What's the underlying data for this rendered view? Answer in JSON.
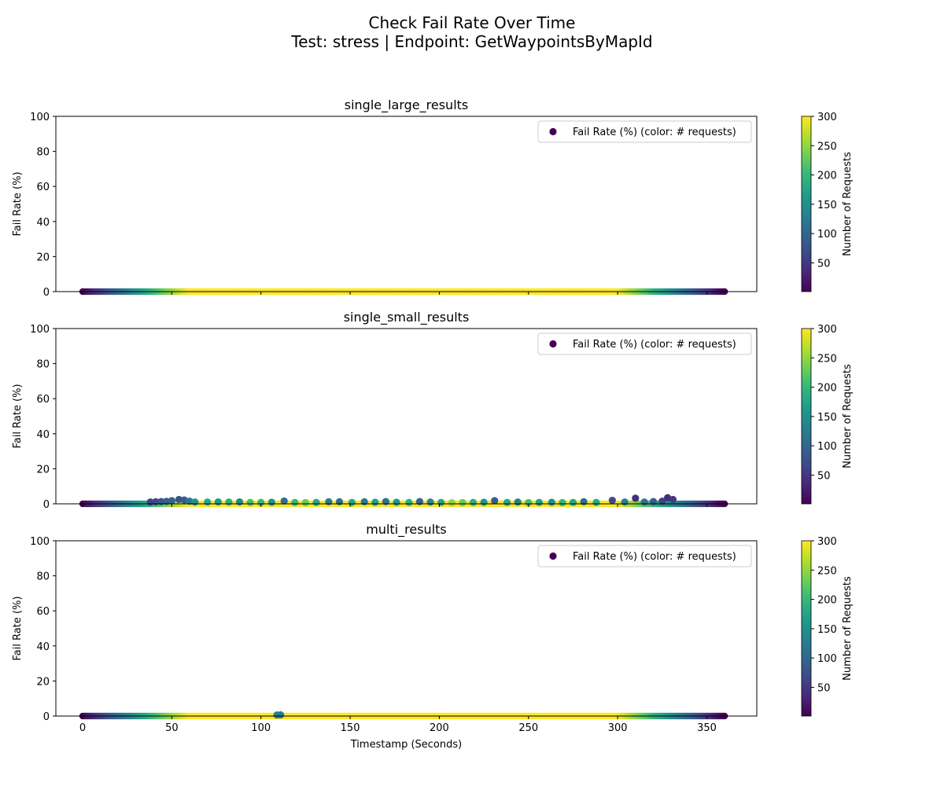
{
  "figure": {
    "title_line1": "Check Fail Rate Over Time",
    "title_line2": "Test: stress | Endpoint: GetWaypointsByMapId"
  },
  "colormap": {
    "name": "viridis",
    "stops": [
      "#440154",
      "#482878",
      "#3e4a89",
      "#31688e",
      "#26838f",
      "#1f9d8a",
      "#35b779",
      "#6ece58",
      "#b5de2b",
      "#fde725"
    ]
  },
  "chart_data": [
    {
      "type": "scatter",
      "title": "single_large_results",
      "ylabel": "Fail Rate (%)",
      "xlabel": "",
      "xlim": [
        -15,
        378
      ],
      "ylim": [
        0,
        100
      ],
      "xticks": [
        0,
        50,
        100,
        150,
        200,
        250,
        300,
        350
      ],
      "yticks": [
        0,
        20,
        40,
        60,
        80,
        100
      ],
      "legend": {
        "label": "Fail Rate (%) (color: # requests)",
        "position": "upper right"
      },
      "colorbar": {
        "label": "Number of Requests",
        "range": [
          1,
          300
        ],
        "ticks": [
          50,
          100,
          150,
          200,
          250,
          300
        ]
      },
      "ramp": {
        "up_start": 0,
        "up_end": 60,
        "down_start": 300,
        "down_end": 360,
        "peak": 300
      },
      "points": []
    },
    {
      "type": "scatter",
      "title": "single_small_results",
      "ylabel": "Fail Rate (%)",
      "xlabel": "",
      "xlim": [
        -15,
        378
      ],
      "ylim": [
        0,
        100
      ],
      "xticks": [
        0,
        50,
        100,
        150,
        200,
        250,
        300,
        350
      ],
      "yticks": [
        0,
        20,
        40,
        60,
        80,
        100
      ],
      "legend": {
        "label": "Fail Rate (%) (color: # requests)",
        "position": "upper right"
      },
      "colorbar": {
        "label": "Number of Requests",
        "range": [
          1,
          300
        ],
        "ticks": [
          50,
          100,
          150,
          200,
          250,
          300
        ]
      },
      "ramp": {
        "up_start": 0,
        "up_end": 60,
        "down_start": 300,
        "down_end": 360,
        "peak": 300
      },
      "points": [
        {
          "x": 38,
          "y": 1.0,
          "n": 60
        },
        {
          "x": 41,
          "y": 1.2,
          "n": 70
        },
        {
          "x": 44,
          "y": 1.3,
          "n": 80
        },
        {
          "x": 47,
          "y": 1.4,
          "n": 90
        },
        {
          "x": 50,
          "y": 1.8,
          "n": 95
        },
        {
          "x": 54,
          "y": 2.5,
          "n": 80
        },
        {
          "x": 57,
          "y": 2.2,
          "n": 90
        },
        {
          "x": 60,
          "y": 1.5,
          "n": 120
        },
        {
          "x": 63,
          "y": 1.0,
          "n": 150
        },
        {
          "x": 70,
          "y": 1.0,
          "n": 180
        },
        {
          "x": 76,
          "y": 1.1,
          "n": 160
        },
        {
          "x": 82,
          "y": 1.0,
          "n": 190
        },
        {
          "x": 88,
          "y": 1.1,
          "n": 140
        },
        {
          "x": 94,
          "y": 0.8,
          "n": 210
        },
        {
          "x": 100,
          "y": 0.8,
          "n": 200
        },
        {
          "x": 106,
          "y": 0.9,
          "n": 150
        },
        {
          "x": 113,
          "y": 1.6,
          "n": 110
        },
        {
          "x": 119,
          "y": 0.8,
          "n": 200
        },
        {
          "x": 125,
          "y": 0.7,
          "n": 230
        },
        {
          "x": 131,
          "y": 0.8,
          "n": 180
        },
        {
          "x": 138,
          "y": 1.2,
          "n": 120
        },
        {
          "x": 144,
          "y": 1.2,
          "n": 110
        },
        {
          "x": 151,
          "y": 0.8,
          "n": 180
        },
        {
          "x": 158,
          "y": 1.2,
          "n": 120
        },
        {
          "x": 164,
          "y": 0.9,
          "n": 170
        },
        {
          "x": 170,
          "y": 1.3,
          "n": 110
        },
        {
          "x": 176,
          "y": 0.9,
          "n": 160
        },
        {
          "x": 183,
          "y": 0.8,
          "n": 190
        },
        {
          "x": 189,
          "y": 1.3,
          "n": 100
        },
        {
          "x": 195,
          "y": 1.0,
          "n": 140
        },
        {
          "x": 201,
          "y": 0.8,
          "n": 180
        },
        {
          "x": 207,
          "y": 0.6,
          "n": 250
        },
        {
          "x": 213,
          "y": 0.7,
          "n": 230
        },
        {
          "x": 219,
          "y": 0.8,
          "n": 190
        },
        {
          "x": 225,
          "y": 0.9,
          "n": 160
        },
        {
          "x": 231,
          "y": 1.8,
          "n": 90
        },
        {
          "x": 238,
          "y": 0.8,
          "n": 180
        },
        {
          "x": 244,
          "y": 1.0,
          "n": 130
        },
        {
          "x": 250,
          "y": 0.7,
          "n": 210
        },
        {
          "x": 256,
          "y": 0.8,
          "n": 170
        },
        {
          "x": 263,
          "y": 0.9,
          "n": 150
        },
        {
          "x": 269,
          "y": 0.7,
          "n": 200
        },
        {
          "x": 275,
          "y": 0.8,
          "n": 180
        },
        {
          "x": 281,
          "y": 1.2,
          "n": 110
        },
        {
          "x": 288,
          "y": 0.8,
          "n": 180
        },
        {
          "x": 297,
          "y": 2.0,
          "n": 70
        },
        {
          "x": 304,
          "y": 1.0,
          "n": 130
        },
        {
          "x": 310,
          "y": 3.2,
          "n": 40
        },
        {
          "x": 315,
          "y": 1.0,
          "n": 110
        },
        {
          "x": 320,
          "y": 1.3,
          "n": 90
        },
        {
          "x": 325,
          "y": 1.5,
          "n": 60
        },
        {
          "x": 328,
          "y": 3.5,
          "n": 40
        },
        {
          "x": 331,
          "y": 2.5,
          "n": 50
        }
      ]
    },
    {
      "type": "scatter",
      "title": "multi_results",
      "ylabel": "Fail Rate (%)",
      "xlabel": "Timestamp (Seconds)",
      "xlim": [
        -15,
        378
      ],
      "ylim": [
        0,
        100
      ],
      "xticks": [
        0,
        50,
        100,
        150,
        200,
        250,
        300,
        350
      ],
      "yticks": [
        0,
        20,
        40,
        60,
        80,
        100
      ],
      "legend": {
        "label": "Fail Rate (%) (color: # requests)",
        "position": "upper right"
      },
      "colorbar": {
        "label": "Number of Requests",
        "range": [
          1,
          300
        ],
        "ticks": [
          50,
          100,
          150,
          200,
          250,
          300
        ]
      },
      "ramp": {
        "up_start": 0,
        "up_end": 60,
        "down_start": 300,
        "down_end": 360,
        "peak": 300
      },
      "points": [
        {
          "x": 109,
          "y": 0.6,
          "n": 130
        },
        {
          "x": 111,
          "y": 0.7,
          "n": 120
        }
      ]
    }
  ]
}
